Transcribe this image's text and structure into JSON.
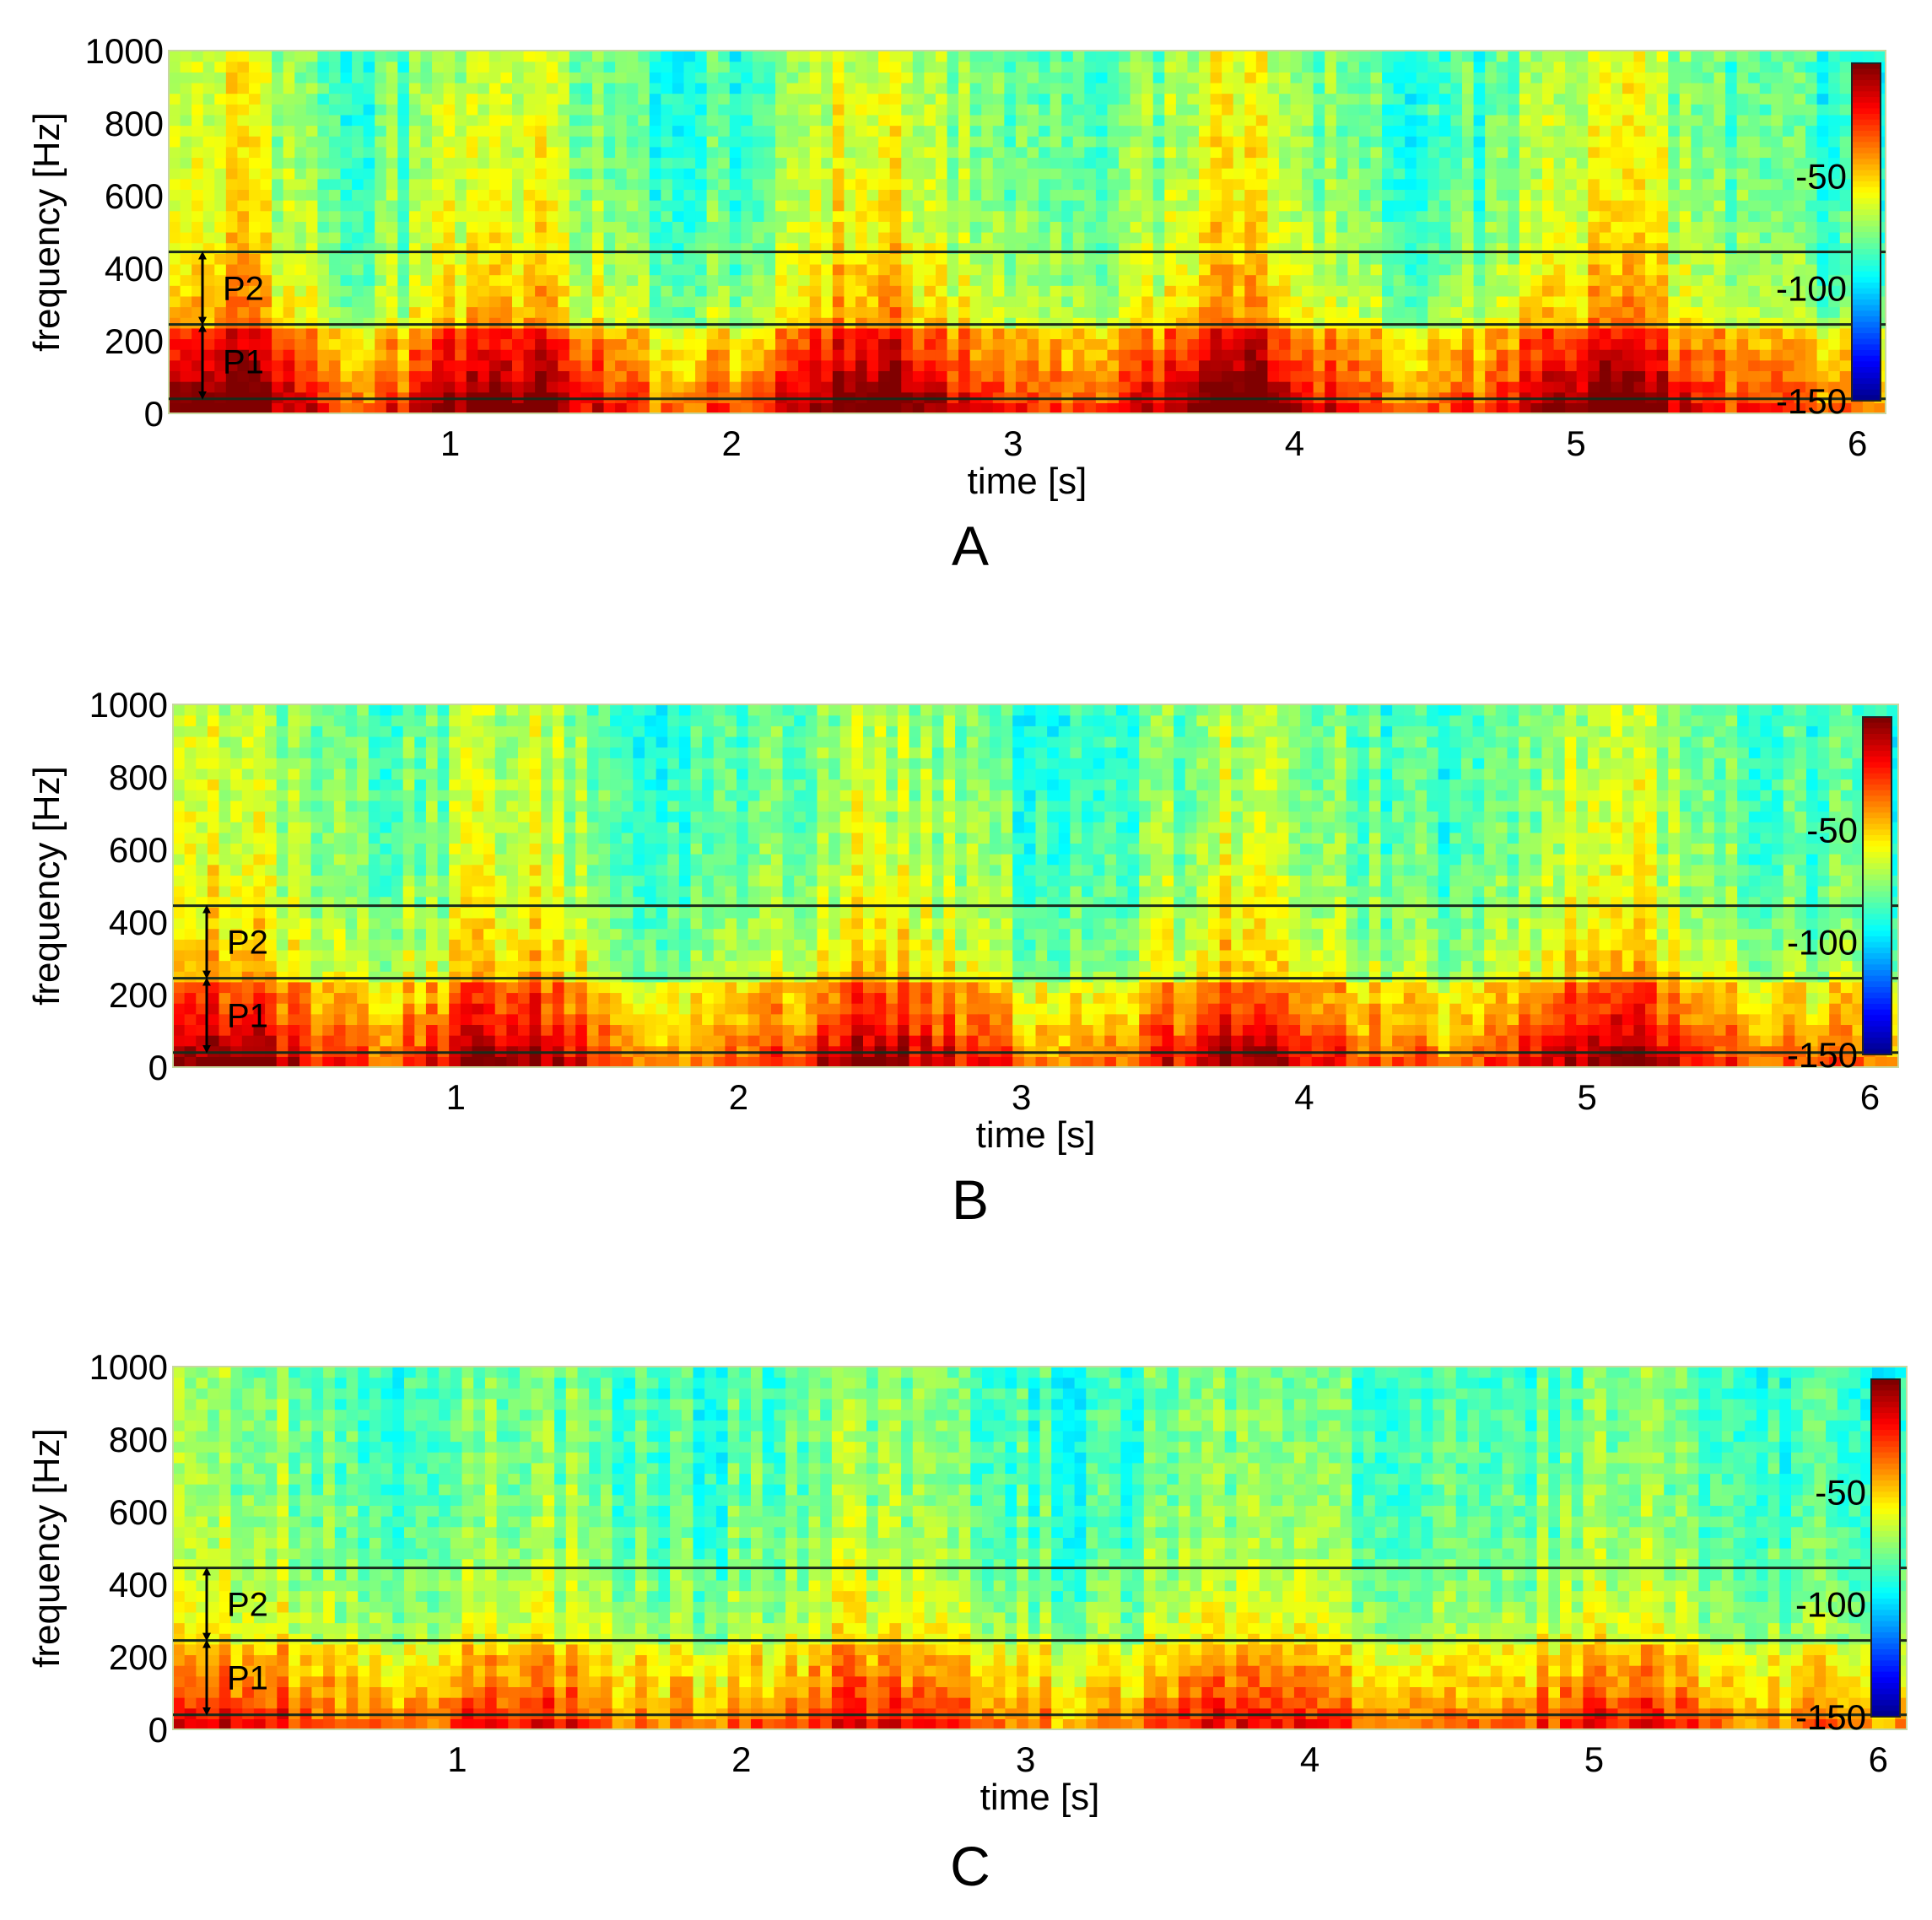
{
  "chart_data": [
    {
      "type": "heatmap",
      "panel_label": "A",
      "xlabel": "time [s]",
      "ylabel": "frequency [Hz]",
      "xlim": [
        0,
        6.1
      ],
      "ylim": [
        0,
        1000
      ],
      "xticks": [
        1,
        2,
        3,
        4,
        5,
        6
      ],
      "xtick_labels": [
        "1",
        "2",
        "3",
        "4",
        "5",
        "6"
      ],
      "yticks": [
        0,
        200,
        400,
        600,
        800,
        1000
      ],
      "ytick_labels": [
        "0",
        "200",
        "400",
        "600",
        "800",
        "1000"
      ],
      "colorbar": {
        "range": [
          -150,
          0
        ],
        "ticks": [
          -50,
          -100,
          -150
        ],
        "tick_labels": [
          "-50",
          "-100",
          "-150"
        ]
      },
      "bands": [
        {
          "name": "P1",
          "from": 40,
          "to": 245
        },
        {
          "name": "P2",
          "from": 245,
          "to": 445
        }
      ],
      "burst_centers_s": [
        0.2,
        1.2,
        2.5,
        3.8,
        5.1
      ],
      "burst_strength": 1.0
    },
    {
      "type": "heatmap",
      "panel_label": "B",
      "xlabel": "time [s]",
      "ylabel": "frequency [Hz]",
      "xlim": [
        0,
        6.1
      ],
      "ylim": [
        0,
        1000
      ],
      "xticks": [
        1,
        2,
        3,
        4,
        5,
        6
      ],
      "xtick_labels": [
        "1",
        "2",
        "3",
        "4",
        "5",
        "6"
      ],
      "yticks": [
        0,
        200,
        400,
        600,
        800,
        1000
      ],
      "ytick_labels": [
        "0",
        "200",
        "400",
        "600",
        "800",
        "1000"
      ],
      "colorbar": {
        "range": [
          -150,
          0
        ],
        "ticks": [
          -50,
          -100,
          -150
        ],
        "tick_labels": [
          "-50",
          "-100",
          "-150"
        ]
      },
      "bands": [
        {
          "name": "P1",
          "from": 40,
          "to": 245
        },
        {
          "name": "P2",
          "from": 245,
          "to": 445
        }
      ],
      "burst_centers_s": [
        0.2,
        1.2,
        2.5,
        3.8,
        5.1
      ],
      "burst_strength": 0.8
    },
    {
      "type": "heatmap",
      "panel_label": "C",
      "xlabel": "time [s]",
      "ylabel": "frequency [Hz]",
      "xlim": [
        0,
        6.1
      ],
      "ylim": [
        0,
        1000
      ],
      "xticks": [
        1,
        2,
        3,
        4,
        5,
        6
      ],
      "xtick_labels": [
        "1",
        "2",
        "3",
        "4",
        "5",
        "6"
      ],
      "yticks": [
        0,
        200,
        400,
        600,
        800,
        1000
      ],
      "ytick_labels": [
        "0",
        "200",
        "400",
        "600",
        "800",
        "1000"
      ],
      "colorbar": {
        "range": [
          -150,
          0
        ],
        "ticks": [
          -50,
          -100,
          -150
        ],
        "tick_labels": [
          "-50",
          "-100",
          "-150"
        ]
      },
      "bands": [
        {
          "name": "P1",
          "from": 40,
          "to": 245
        },
        {
          "name": "P2",
          "from": 245,
          "to": 445
        }
      ],
      "burst_centers_s": [
        0.2,
        1.2,
        2.5,
        3.8,
        5.1
      ],
      "burst_strength": 0.55
    }
  ]
}
